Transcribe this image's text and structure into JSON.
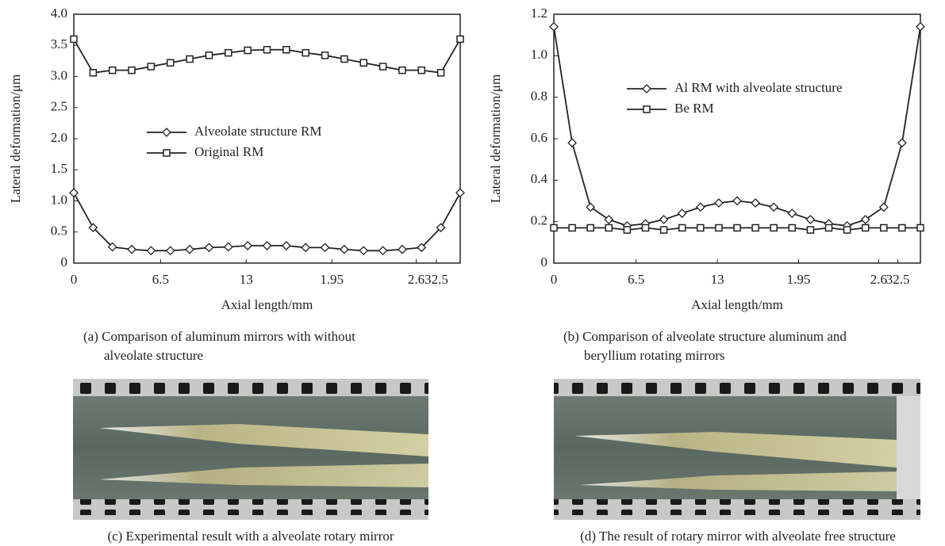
{
  "chart_data": [
    {
      "type": "line",
      "xlabel": "Axial length/mm",
      "ylabel": "Lateral deformation/μm",
      "caption": [
        "(a) Comparison of aluminum mirrors with without",
        "alveolate structure"
      ],
      "x": [
        0,
        1.625,
        3.25,
        4.875,
        6.5,
        8.125,
        9.75,
        11.375,
        13,
        14.625,
        16.25,
        17.875,
        19.5,
        21.125,
        22.75,
        24.375,
        26,
        27.625,
        29.25,
        30.875,
        32.5
      ],
      "xlim": [
        0,
        32.5
      ],
      "xticks": [
        {
          "value": 0,
          "label": "0"
        },
        {
          "value": 7.3,
          "label": "6.5"
        },
        {
          "value": 14.5,
          "label": "13"
        },
        {
          "value": 21.7,
          "label": "1.95"
        },
        {
          "value": 28.8,
          "label": "2.6"
        },
        {
          "value": 30.5,
          "label": "32.5"
        }
      ],
      "ylim": [
        0,
        4
      ],
      "yticks": [
        {
          "value": 0,
          "label": "0"
        },
        {
          "value": 0.5,
          "label": "0.5"
        },
        {
          "value": 1,
          "label": "1.0"
        },
        {
          "value": 1.5,
          "label": "1.5"
        },
        {
          "value": 2,
          "label": "2.0"
        },
        {
          "value": 2.5,
          "label": "2.5"
        },
        {
          "value": 3,
          "label": "3.0"
        },
        {
          "value": 3.5,
          "label": "3.5"
        },
        {
          "value": 4,
          "label": "4.0"
        }
      ],
      "series": [
        {
          "name": "Alveolate structure RM",
          "color": "#222222",
          "marker": "diamond",
          "values": [
            1.13,
            0.57,
            0.26,
            0.22,
            0.2,
            0.2,
            0.22,
            0.25,
            0.26,
            0.28,
            0.28,
            0.28,
            0.25,
            0.25,
            0.22,
            0.2,
            0.2,
            0.22,
            0.25,
            0.57,
            1.13
          ]
        },
        {
          "name": "Original RM",
          "color": "#222222",
          "marker": "square",
          "values": [
            3.6,
            3.06,
            3.1,
            3.1,
            3.16,
            3.22,
            3.28,
            3.34,
            3.38,
            3.42,
            3.43,
            3.43,
            3.38,
            3.34,
            3.28,
            3.22,
            3.16,
            3.1,
            3.1,
            3.06,
            3.6
          ]
        }
      ]
    },
    {
      "type": "line",
      "xlabel": "Axial length/mm",
      "ylabel": "Lateral deformation/μm",
      "caption": [
        "(b) Comparison of alveolate structure aluminum and",
        "beryllium rotating mirrors"
      ],
      "x": [
        0,
        1.625,
        3.25,
        4.875,
        6.5,
        8.125,
        9.75,
        11.375,
        13,
        14.625,
        16.25,
        17.875,
        19.5,
        21.125,
        22.75,
        24.375,
        26,
        27.625,
        29.25,
        30.875,
        32.5
      ],
      "xlim": [
        0,
        32.5
      ],
      "xticks": [
        {
          "value": 0,
          "label": "0"
        },
        {
          "value": 7.3,
          "label": "6.5"
        },
        {
          "value": 14.5,
          "label": "13"
        },
        {
          "value": 21.7,
          "label": "1.95"
        },
        {
          "value": 28.8,
          "label": "2.6"
        },
        {
          "value": 30.5,
          "label": "32.5"
        }
      ],
      "ylim": [
        0,
        1.2
      ],
      "yticks": [
        {
          "value": 0,
          "label": "0"
        },
        {
          "value": 0.2,
          "label": "0.2"
        },
        {
          "value": 0.4,
          "label": "0.4"
        },
        {
          "value": 0.6,
          "label": "0.6"
        },
        {
          "value": 0.8,
          "label": "0.8"
        },
        {
          "value": 1,
          "label": "1.0"
        },
        {
          "value": 1.2,
          "label": "1.2"
        }
      ],
      "series": [
        {
          "name": "Al RM with alveolate structure",
          "color": "#222222",
          "marker": "diamond",
          "values": [
            1.14,
            0.58,
            0.27,
            0.21,
            0.18,
            0.19,
            0.21,
            0.24,
            0.27,
            0.29,
            0.3,
            0.29,
            0.27,
            0.24,
            0.21,
            0.19,
            0.18,
            0.21,
            0.27,
            0.58,
            1.14
          ]
        },
        {
          "name": "Be RM",
          "color": "#222222",
          "marker": "square",
          "values": [
            0.17,
            0.17,
            0.17,
            0.17,
            0.16,
            0.17,
            0.16,
            0.17,
            0.17,
            0.17,
            0.17,
            0.17,
            0.17,
            0.17,
            0.16,
            0.17,
            0.16,
            0.17,
            0.17,
            0.17,
            0.17
          ]
        }
      ]
    }
  ],
  "photos": [
    {
      "caption": "(c)  Experimental result with a alveolate rotary mirror"
    },
    {
      "caption": "(d)  The result of rotary mirror with alveolate free structure"
    }
  ]
}
